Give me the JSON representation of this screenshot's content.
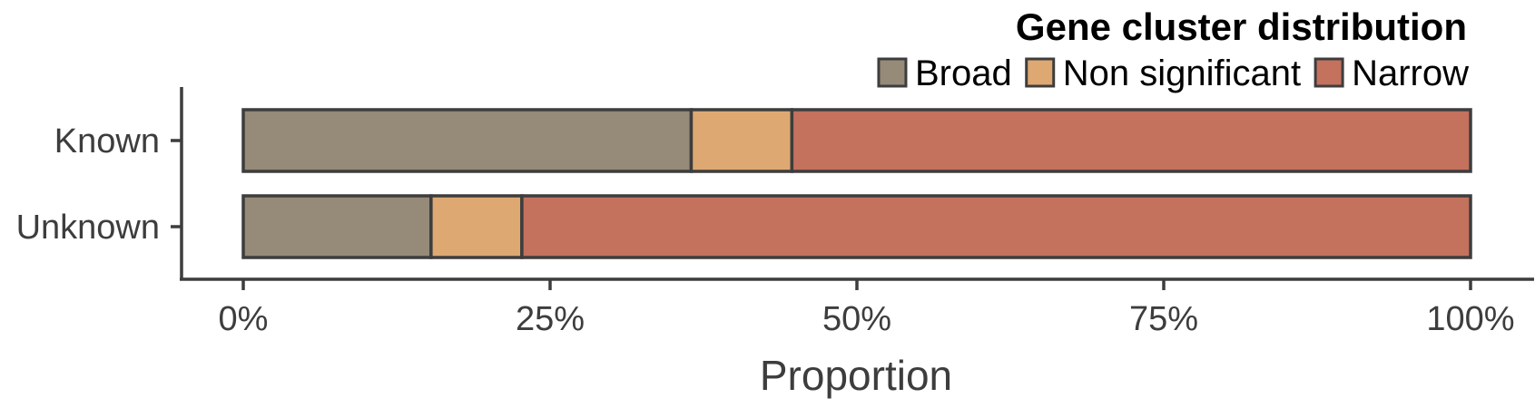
{
  "chart_data": {
    "type": "bar",
    "orientation": "horizontal",
    "stacked": true,
    "categories": [
      "Known",
      "Unknown"
    ],
    "series": [
      {
        "name": "Broad",
        "color": "#968a78",
        "values": [
          36.5,
          15.3
        ]
      },
      {
        "name": "Non significant",
        "color": "#dea872",
        "values": [
          8.2,
          7.4
        ]
      },
      {
        "name": "Narrow",
        "color": "#c4715e",
        "values": [
          55.3,
          77.3
        ]
      }
    ],
    "xlabel": "Proportion",
    "ylabel": "",
    "xlim": [
      0,
      100
    ],
    "x_ticks": [
      "0%",
      "25%",
      "50%",
      "75%",
      "100%"
    ],
    "legend": {
      "title": "Gene cluster distribution",
      "position": "top-right"
    },
    "grid": false
  }
}
